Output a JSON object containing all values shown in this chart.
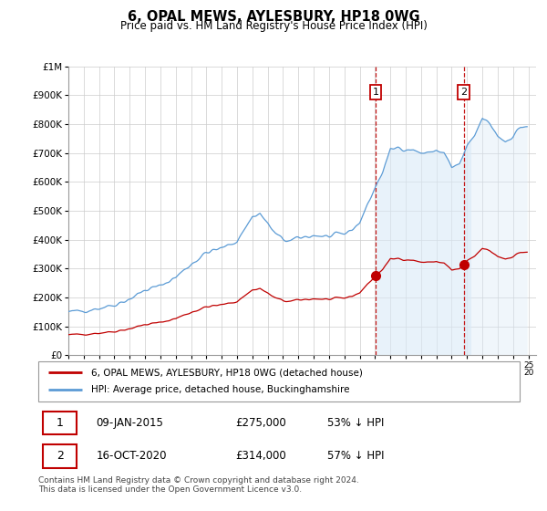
{
  "title": "6, OPAL MEWS, AYLESBURY, HP18 0WG",
  "subtitle": "Price paid vs. HM Land Registry's House Price Index (HPI)",
  "legend_red": "6, OPAL MEWS, AYLESBURY, HP18 0WG (detached house)",
  "legend_blue": "HPI: Average price, detached house, Buckinghamshire",
  "transaction1_date": "09-JAN-2015",
  "transaction1_price": "£275,000",
  "transaction1_hpi": "53% ↓ HPI",
  "transaction2_date": "16-OCT-2020",
  "transaction2_price": "£314,000",
  "transaction2_hpi": "57% ↓ HPI",
  "footer": "Contains HM Land Registry data © Crown copyright and database right 2024.\nThis data is licensed under the Open Government Licence v3.0.",
  "ylim": [
    0,
    1000000
  ],
  "yticks": [
    0,
    100000,
    200000,
    300000,
    400000,
    500000,
    600000,
    700000,
    800000,
    900000,
    1000000
  ],
  "ytick_labels": [
    "£0",
    "£100K",
    "£200K",
    "£300K",
    "£400K",
    "£500K",
    "£600K",
    "£700K",
    "£800K",
    "£900K",
    "£1M"
  ],
  "hpi_color": "#5b9bd5",
  "hpi_fill_color": "#daeaf7",
  "red_color": "#c00000",
  "marker1_x": 2015.04,
  "marker1_y": 275000,
  "marker2_x": 2020.79,
  "marker2_y": 314000,
  "background_color": "#ffffff",
  "grid_color": "#cccccc",
  "xlim_left": 1995.0,
  "xlim_right": 2025.5
}
